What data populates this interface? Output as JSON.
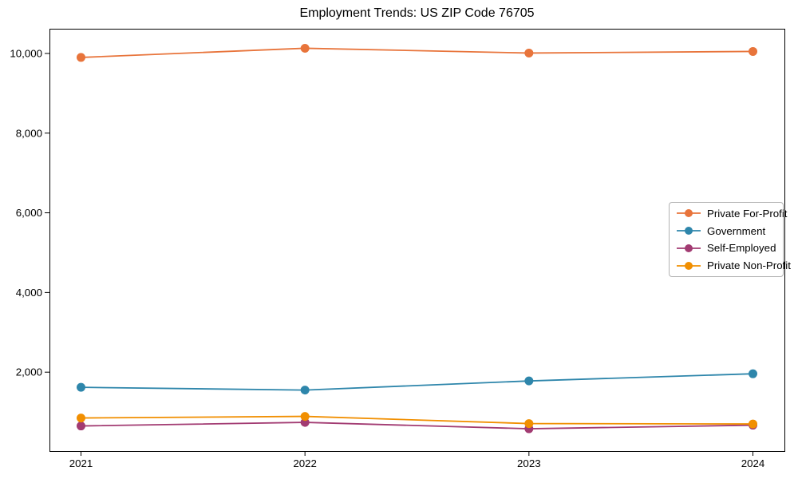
{
  "chart_data": {
    "type": "line",
    "title": "Employment Trends: US ZIP Code 76705",
    "xlabel": "",
    "ylabel": "",
    "categories": [
      "2021",
      "2022",
      "2023",
      "2024"
    ],
    "series": [
      {
        "name": "Private For-Profit",
        "color": "#E8743B",
        "values": [
          9900,
          10130,
          10010,
          10050
        ]
      },
      {
        "name": "Government",
        "color": "#2E86AB",
        "values": [
          1620,
          1550,
          1780,
          1960
        ]
      },
      {
        "name": "Self-Employed",
        "color": "#A23B72",
        "values": [
          650,
          740,
          580,
          670
        ]
      },
      {
        "name": "Private Non-Profit",
        "color": "#F18F01",
        "values": [
          850,
          890,
          710,
          700
        ]
      }
    ],
    "yticks": {
      "values": [
        2000,
        4000,
        6000,
        8000,
        10000
      ],
      "labels": [
        "2,000",
        "4,000",
        "6,000",
        "8,000",
        "10,000"
      ]
    },
    "ylim": [
      20,
      10620
    ],
    "grid": false,
    "legend_position": "center right",
    "marker": "circle",
    "axis_color": "#000000",
    "background_color": "#ffffff"
  }
}
